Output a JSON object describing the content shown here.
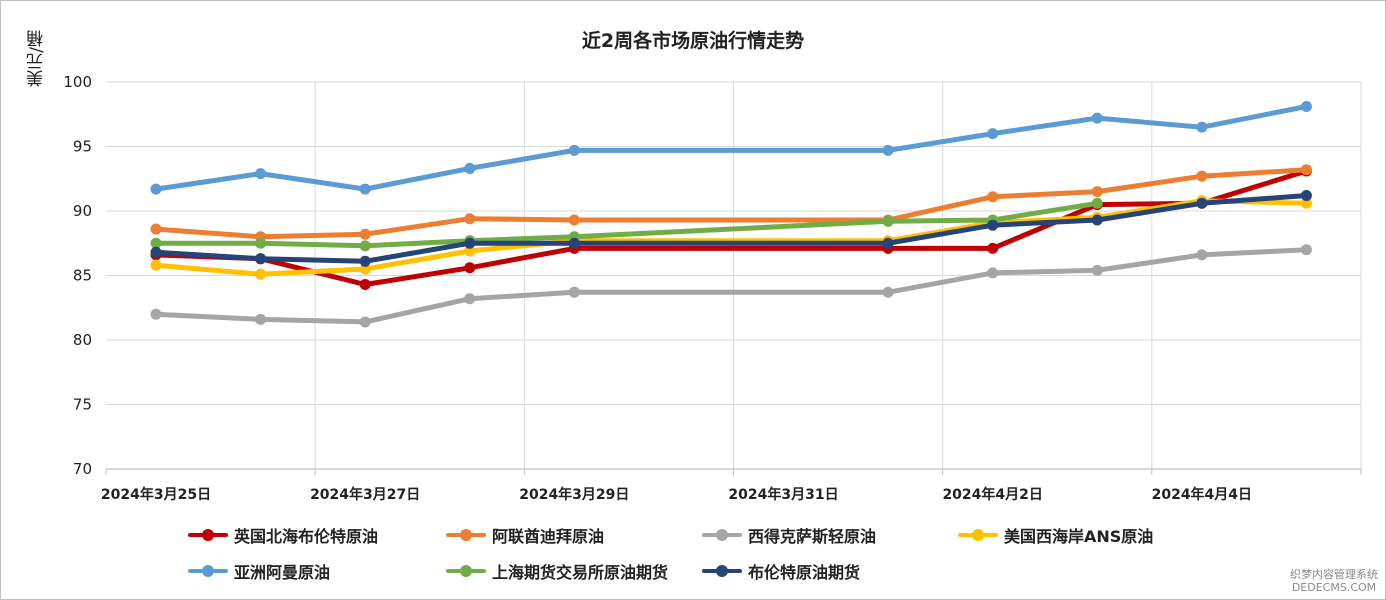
{
  "chart_data": {
    "type": "line",
    "title": "近2周各市场原油行情走势",
    "ylabel": "美元/桶",
    "xlabel": "",
    "ylim": [
      70,
      100
    ],
    "y_ticks": [
      "70",
      "75",
      "80",
      "85",
      "90",
      "95",
      "100"
    ],
    "x_tick_labels": [
      "2024年3月25日",
      "2024年3月27日",
      "2024年3月29日",
      "2024年3月31日",
      "2024年4月2日",
      "2024年4月4日"
    ],
    "x": [
      "2024-03-25",
      "2024-03-26",
      "2024-03-27",
      "2024-03-28",
      "2024-03-29",
      "2024-04-01",
      "2024-04-02",
      "2024-04-03",
      "2024-04-04",
      "2024-04-05"
    ],
    "grid": true,
    "legend_position": "bottom",
    "series": [
      {
        "name": "英国北海布伦特原油",
        "color": "#c00000",
        "values": [
          86.6,
          86.3,
          84.3,
          85.6,
          87.1,
          87.1,
          87.1,
          90.5,
          90.6,
          93.1
        ]
      },
      {
        "name": "阿联酋迪拜原油",
        "color": "#ed7d31",
        "values": [
          88.6,
          88.0,
          88.2,
          89.4,
          89.3,
          89.3,
          91.1,
          91.5,
          92.7,
          93.2
        ]
      },
      {
        "name": "西得克萨斯轻原油",
        "color": "#a5a5a5",
        "values": [
          82.0,
          81.6,
          81.4,
          83.2,
          83.7,
          83.7,
          85.2,
          85.4,
          86.6,
          87.0
        ]
      },
      {
        "name": "美国西海岸ANS原油",
        "color": "#ffc000",
        "values": [
          85.8,
          85.1,
          85.5,
          86.9,
          87.7,
          87.7,
          89.1,
          89.5,
          90.8,
          90.6
        ]
      },
      {
        "name": "亚洲阿曼原油",
        "color": "#5b9bd5",
        "values": [
          91.7,
          92.9,
          91.7,
          93.3,
          94.7,
          94.7,
          96.0,
          97.2,
          96.5,
          98.1
        ]
      },
      {
        "name": "上海期货交易所原油期货",
        "color": "#70ad47",
        "values": [
          87.5,
          87.5,
          87.3,
          87.7,
          88.0,
          89.2,
          89.3,
          90.6,
          null,
          null
        ]
      },
      {
        "name": "布伦特原油期货",
        "color": "#264478",
        "values": [
          86.8,
          86.3,
          86.1,
          87.5,
          87.5,
          87.5,
          88.9,
          89.3,
          90.6,
          91.2
        ]
      }
    ]
  },
  "watermark": {
    "line1": "织梦内容管理系统",
    "line2": "DEDECMS.COM"
  }
}
